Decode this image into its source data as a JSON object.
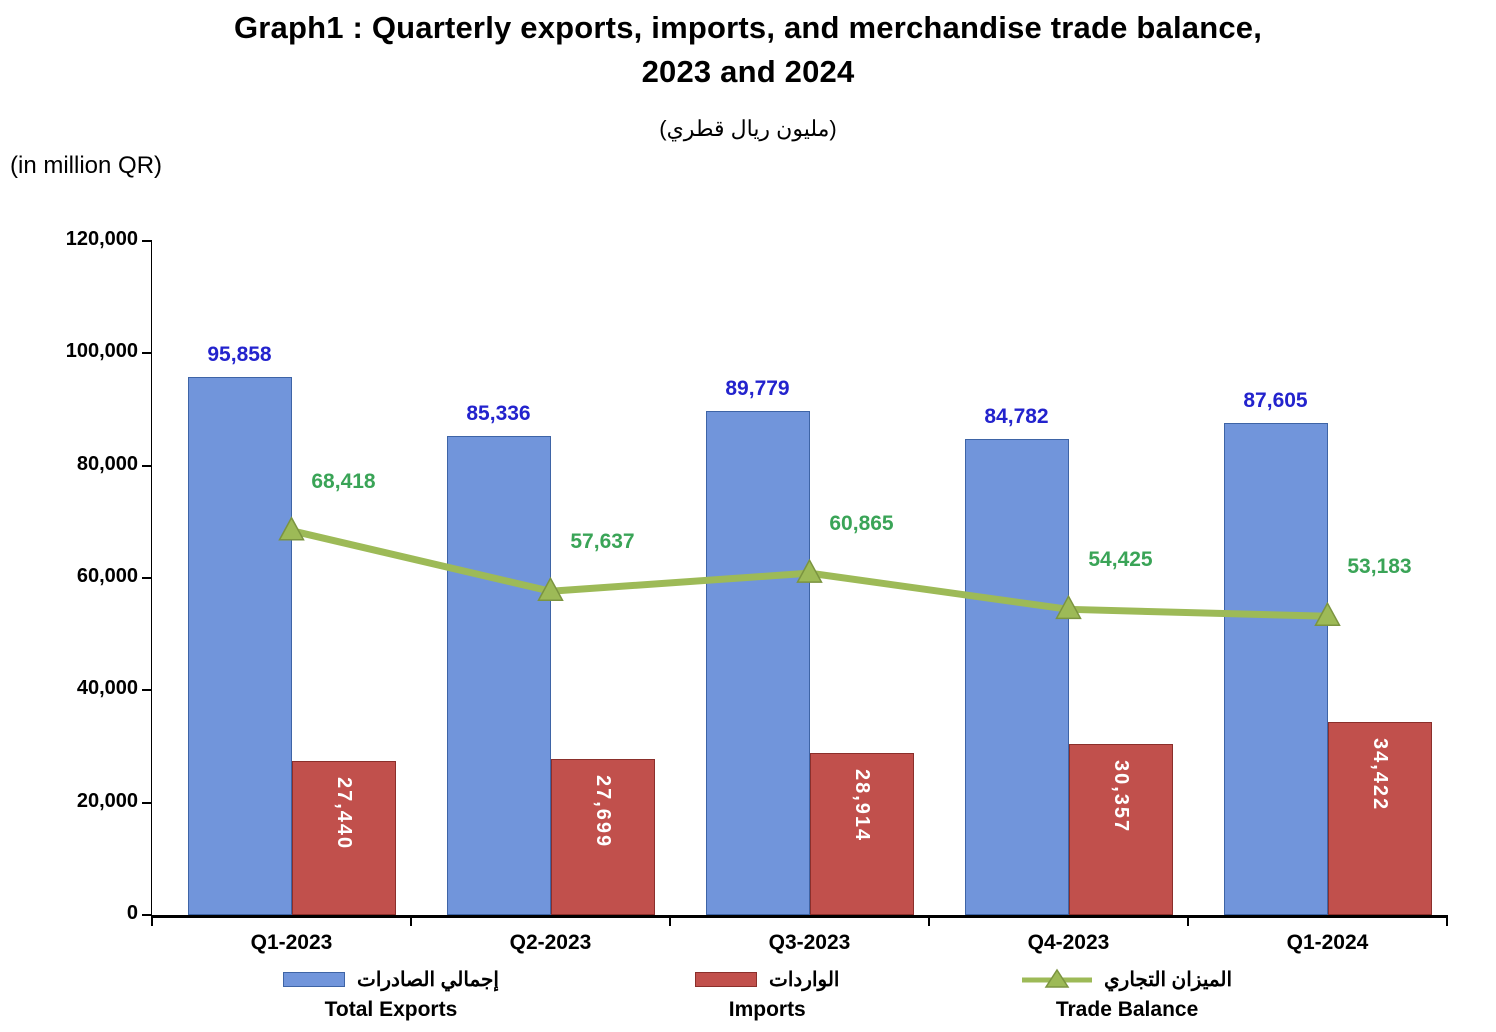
{
  "header": {
    "title_line1": "Graph1 : Quarterly exports, imports, and merchandise trade balance,",
    "title_line2": "2023 and 2024",
    "subtitle_arabic": "(مليون ريال قطري)",
    "unit_label": "(in million QR)"
  },
  "chart_data": {
    "type": "bar",
    "subtype": "grouped bars with overlaid line series",
    "title": "Graph1 : Quarterly exports, imports, and merchandise trade balance, 2023 and 2024",
    "unit": "in million QR",
    "categories": [
      "Q1-2023",
      "Q2-2023",
      "Q3-2023",
      "Q4-2023",
      "Q1-2024"
    ],
    "series": [
      {
        "name": "Total Exports",
        "name_arabic": "إجمالي الصادرات",
        "type": "bar",
        "color": "#7195DB",
        "border_color": "#3E64A6",
        "label_color": "#2323CD",
        "values": [
          95858,
          85336,
          89779,
          84782,
          87605
        ]
      },
      {
        "name": "Imports",
        "name_arabic": "الواردات",
        "type": "bar",
        "color": "#C1504C",
        "border_color": "#8B2F2B",
        "label_color": "#FFFFFF",
        "values": [
          27440,
          27699,
          28914,
          30357,
          34422
        ]
      },
      {
        "name": "Trade Balance",
        "name_arabic": "الميزان التجاري",
        "type": "line",
        "color": "#9DBA57",
        "marker": "triangle",
        "marker_border": "#7B9440",
        "label_color": "#3AA457",
        "values": [
          68418,
          57637,
          60865,
          54425,
          53183
        ]
      }
    ],
    "ylim": [
      0,
      120000
    ],
    "ytick_step": 20000,
    "ytick_labels": [
      "0",
      "20,000",
      "40,000",
      "60,000",
      "80,000",
      "100,000",
      "120,000"
    ],
    "grid": false,
    "legend_position": "bottom"
  }
}
